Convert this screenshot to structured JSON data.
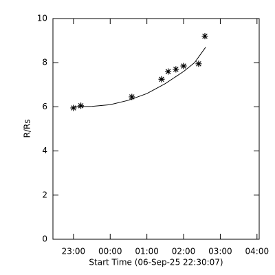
{
  "chart_data": {
    "type": "scatter",
    "x_label": "Start Time (06-Sep-25 22:30:07)",
    "y_label": "R/Rs",
    "x": [
      23.0,
      23.2,
      24.59,
      25.4,
      25.58,
      25.79,
      26.0,
      26.41,
      26.58
    ],
    "values": [
      5.95,
      6.05,
      6.45,
      7.25,
      7.6,
      7.7,
      7.85,
      7.95,
      9.2
    ],
    "curve": {
      "x": [
        23.0,
        23.5,
        24.0,
        24.5,
        25.0,
        25.5,
        26.0,
        26.3,
        26.6
      ],
      "values": [
        6.0,
        6.02,
        6.1,
        6.3,
        6.6,
        7.05,
        7.6,
        8.0,
        8.7
      ]
    },
    "color": "#000000",
    "xlim": [
      22.44,
      28.06
    ],
    "ylim": [
      0,
      10
    ],
    "xticks": [
      {
        "value": 23,
        "label": "23:00"
      },
      {
        "value": 24,
        "label": "00:00"
      },
      {
        "value": 25,
        "label": "01:00"
      },
      {
        "value": 26,
        "label": "02:00"
      },
      {
        "value": 27,
        "label": "03:00"
      },
      {
        "value": 28,
        "label": "04:00"
      }
    ],
    "yticks": [
      0,
      2,
      4,
      6,
      8,
      10
    ]
  }
}
